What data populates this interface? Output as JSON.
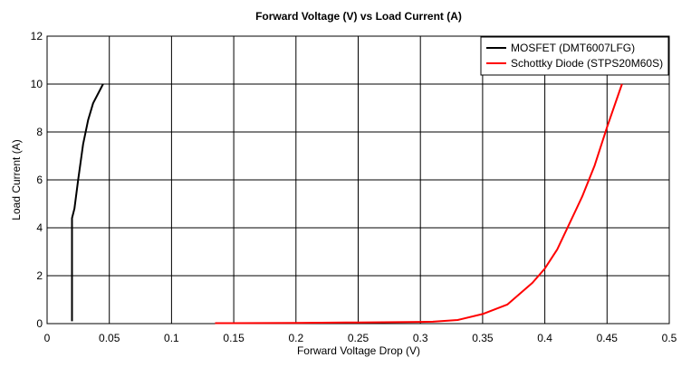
{
  "chart_data": {
    "type": "line",
    "title": "Forward Voltage (V) vs Load Current (A)",
    "xlabel": "Forward Voltage Drop (V)",
    "ylabel": "Load Current (A)",
    "xlim": [
      0,
      0.5
    ],
    "ylim": [
      0,
      12
    ],
    "xticks": [
      0,
      0.05,
      0.1,
      0.15,
      0.2,
      0.25,
      0.3,
      0.35,
      0.4,
      0.45,
      0.5
    ],
    "xtick_labels": [
      "0",
      "0.05",
      "0.1",
      "0.15",
      "0.2",
      "0.25",
      "0.3",
      "0.35",
      "0.4",
      "0.45",
      "0.5"
    ],
    "yticks": [
      0,
      2,
      4,
      6,
      8,
      10,
      12
    ],
    "ytick_labels": [
      "0",
      "2",
      "4",
      "6",
      "8",
      "10",
      "12"
    ],
    "grid": true,
    "legend_position": "top-right",
    "series": [
      {
        "name": "MOSFET (DMT6007LFG)",
        "color": "#000000",
        "points": [
          [
            0.02,
            0.1
          ],
          [
            0.02,
            2.0
          ],
          [
            0.02,
            4.4
          ],
          [
            0.022,
            4.8
          ],
          [
            0.025,
            6.0
          ],
          [
            0.029,
            7.5
          ],
          [
            0.033,
            8.5
          ],
          [
            0.037,
            9.2
          ],
          [
            0.045,
            10.0
          ]
        ]
      },
      {
        "name": "Schottky Diode (STPS20M60S)",
        "color": "#ff0000",
        "points": [
          [
            0.135,
            0.02
          ],
          [
            0.2,
            0.03
          ],
          [
            0.25,
            0.05
          ],
          [
            0.3,
            0.07
          ],
          [
            0.31,
            0.08
          ],
          [
            0.33,
            0.15
          ],
          [
            0.35,
            0.4
          ],
          [
            0.37,
            0.8
          ],
          [
            0.39,
            1.7
          ],
          [
            0.4,
            2.3
          ],
          [
            0.41,
            3.1
          ],
          [
            0.42,
            4.2
          ],
          [
            0.43,
            5.3
          ],
          [
            0.44,
            6.6
          ],
          [
            0.45,
            8.2
          ],
          [
            0.46,
            9.7
          ],
          [
            0.462,
            10.0
          ]
        ]
      }
    ]
  }
}
